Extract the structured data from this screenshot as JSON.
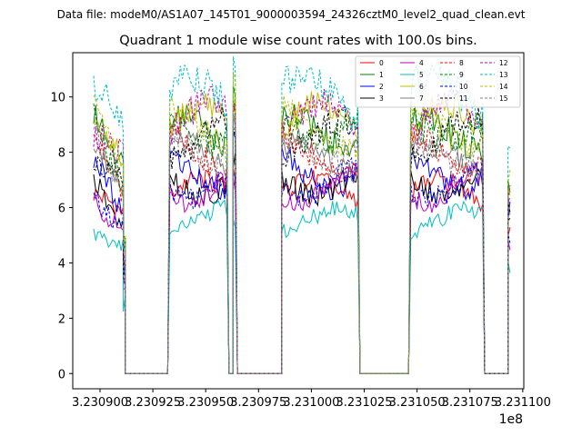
{
  "chart_data": {
    "type": "line",
    "suptitle": "Data file: modeM0/AS1A07_145T01_9000003594_24326cztM0_level2_quad_clean.evt",
    "title": "Quadrant 1 module wise count rates with 100.0s bins.",
    "xlabel": "",
    "ylabel": "",
    "x_offset_label": "1e8",
    "xlim": [
      323088710,
      323110050
    ],
    "ylim": [
      -0.55,
      11.6
    ],
    "x_ticks": [
      323090000,
      323092500,
      323095000,
      323097500,
      323100000,
      323102500,
      323105000,
      323107500,
      323110000
    ],
    "x_tick_labels": [
      "3.230900",
      "3.230925",
      "3.230950",
      "3.230975",
      "3.231000",
      "3.231025",
      "3.231050",
      "3.231075",
      "3.231100"
    ],
    "y_ticks": [
      0,
      2,
      4,
      6,
      8,
      10
    ],
    "y_tick_labels": [
      "0",
      "2",
      "4",
      "6",
      "8",
      "10"
    ],
    "grid": false,
    "legend_position": "top-right",
    "bin_seconds": 100,
    "segments": [
      {
        "start": 323089700,
        "end": 323091100,
        "base": 1.0,
        "decay_to": 0.82
      },
      {
        "start": 323091100,
        "end": 323091200,
        "base": 0.5,
        "decay_to": 0.5
      },
      {
        "start": 323091200,
        "end": 323093200,
        "base": 0,
        "decay_to": 0
      },
      {
        "start": 323093300,
        "end": 323096000,
        "base": 1.0,
        "decay_to": 1.0
      },
      {
        "start": 323096100,
        "end": 323096300,
        "base": 0,
        "decay_to": 0
      },
      {
        "start": 323096300,
        "end": 323096400,
        "base": 1.1,
        "decay_to": 1.1
      },
      {
        "start": 323096500,
        "end": 323098600,
        "base": 0,
        "decay_to": 0
      },
      {
        "start": 323098600,
        "end": 323102200,
        "base": 1.0,
        "decay_to": 1.0
      },
      {
        "start": 323102300,
        "end": 323104600,
        "base": 0,
        "decay_to": 0
      },
      {
        "start": 323104700,
        "end": 323108100,
        "base": 1.0,
        "decay_to": 1.0
      },
      {
        "start": 323108200,
        "end": 323109300,
        "base": 0,
        "decay_to": 0
      },
      {
        "start": 323109300,
        "end": 323109400,
        "base": 0.75,
        "decay_to": 0.75
      }
    ],
    "series": [
      {
        "name": "0",
        "color": "#ff0000",
        "dash": "solid",
        "level": 6.5
      },
      {
        "name": "1",
        "color": "#008000",
        "dash": "solid",
        "level": 8.7
      },
      {
        "name": "2",
        "color": "#0000ff",
        "dash": "solid",
        "level": 7.3
      },
      {
        "name": "3",
        "color": "#000000",
        "dash": "solid",
        "level": 7.0
      },
      {
        "name": "4",
        "color": "#bf00bf",
        "dash": "solid",
        "level": 6.7
      },
      {
        "name": "5",
        "color": "#00bfbf",
        "dash": "solid",
        "level": 5.5
      },
      {
        "name": "6",
        "color": "#bfbf00",
        "dash": "solid",
        "level": 9.0
      },
      {
        "name": "7",
        "color": "#808080",
        "dash": "solid",
        "level": 7.8
      },
      {
        "name": "8",
        "color": "#ff0000",
        "dash": "dashed",
        "level": 8.0
      },
      {
        "name": "9",
        "color": "#008000",
        "dash": "dashed",
        "level": 9.0
      },
      {
        "name": "10",
        "color": "#0000ff",
        "dash": "dashed",
        "level": 6.9
      },
      {
        "name": "11",
        "color": "#000000",
        "dash": "dashed",
        "level": 8.5
      },
      {
        "name": "12",
        "color": "#bf00bf",
        "dash": "dashed",
        "level": 9.1
      },
      {
        "name": "13",
        "color": "#00bfbf",
        "dash": "dashed",
        "level": 10.0
      },
      {
        "name": "14",
        "color": "#bfbf00",
        "dash": "dashed",
        "level": 8.9
      },
      {
        "name": "15",
        "color": "#808080",
        "dash": "dashed",
        "level": 8.3
      }
    ]
  }
}
